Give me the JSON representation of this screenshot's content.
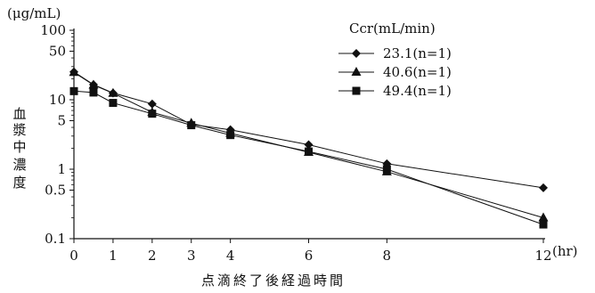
{
  "chart_data": {
    "type": "line",
    "y_unit_label": "(μg/mL)",
    "ylabel": "血漿中濃度",
    "xlabel": "点滴終了後経過時間",
    "x_unit_label": "(hr)",
    "yscale": "log",
    "ylim": [
      0.1,
      100
    ],
    "xlim": [
      0,
      12
    ],
    "x_ticks": [
      0,
      1,
      2,
      3,
      4,
      6,
      8,
      12
    ],
    "y_ticks": [
      0.1,
      0.5,
      1,
      5,
      10,
      50,
      100
    ],
    "grid": false,
    "legend_title": "Ccr(mL/min)",
    "legend_position": "top-right",
    "series": [
      {
        "name": "23.1(n=1)",
        "marker": "diamond",
        "x": [
          0,
          0.5,
          1,
          2,
          3,
          4,
          6,
          8,
          12
        ],
        "y": [
          25.2,
          16.5,
          12.5,
          8.7,
          4.4,
          3.7,
          2.25,
          1.2,
          0.54
        ]
      },
      {
        "name": "40.6(n=1)",
        "marker": "triangle",
        "x": [
          0,
          0.5,
          1,
          2,
          3,
          4,
          6,
          8,
          12
        ],
        "y": [
          24.8,
          16.3,
          12.4,
          6.6,
          4.6,
          3.3,
          1.75,
          0.92,
          0.2
        ]
      },
      {
        "name": "49.4(n=1)",
        "marker": "square",
        "x": [
          0,
          0.5,
          1,
          2,
          3,
          4,
          6,
          8,
          12
        ],
        "y": [
          13.3,
          12.7,
          9.0,
          6.3,
          4.3,
          3.1,
          1.8,
          1.0,
          0.16
        ]
      }
    ]
  }
}
